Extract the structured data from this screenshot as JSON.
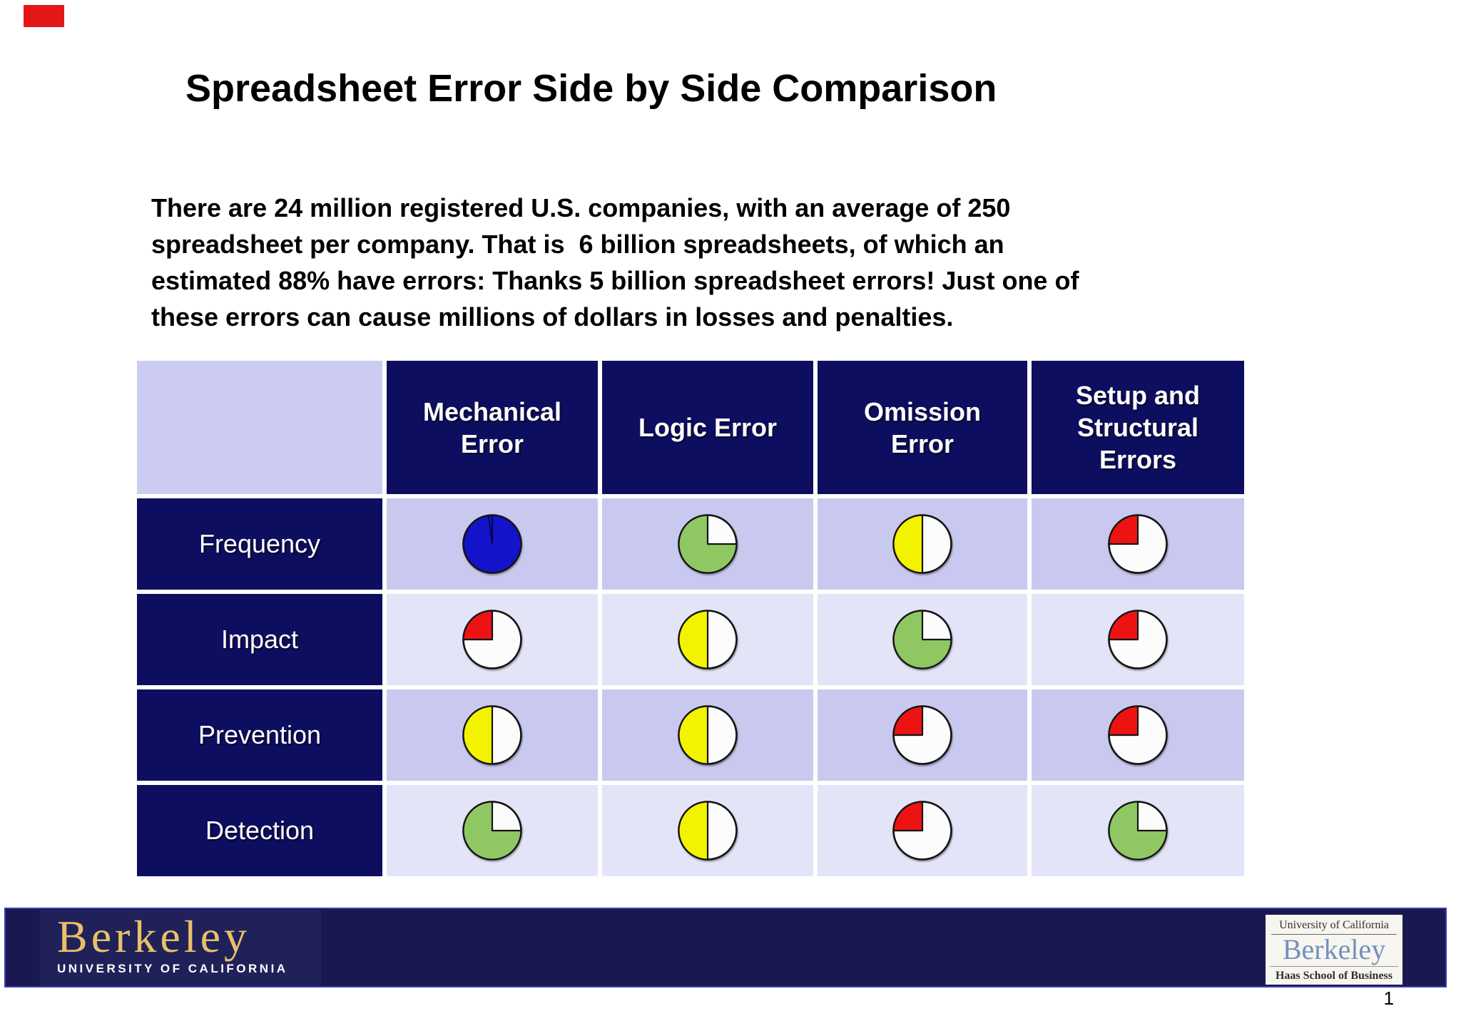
{
  "slide": {
    "title": "Spreadsheet Error Side by Side Comparison",
    "intro_lines": [
      "There are 24 million registered U.S. companies, with an average of 250",
      "spreadsheet per company. That is  6 billion spreadsheets, of which an",
      "estimated 88% have errors: Thanks 5 billion spreadsheet errors! Just one of",
      "these errors can cause millions of dollars in losses and penalties."
    ],
    "page_number": "1"
  },
  "table": {
    "columns": [
      "Mechanical Error",
      "Logic Error",
      "Omission Error",
      "Setup and Structural Errors"
    ],
    "rows": [
      {
        "label": "Frequency",
        "cells": [
          {
            "percent": 100,
            "color": "blue"
          },
          {
            "percent": 75,
            "color": "green"
          },
          {
            "percent": 50,
            "color": "yellow"
          },
          {
            "percent": 25,
            "color": "red"
          }
        ]
      },
      {
        "label": "Impact",
        "cells": [
          {
            "percent": 25,
            "color": "red"
          },
          {
            "percent": 50,
            "color": "yellow"
          },
          {
            "percent": 75,
            "color": "green"
          },
          {
            "percent": 25,
            "color": "red"
          }
        ]
      },
      {
        "label": "Prevention",
        "cells": [
          {
            "percent": 50,
            "color": "yellow"
          },
          {
            "percent": 50,
            "color": "yellow"
          },
          {
            "percent": 25,
            "color": "red"
          },
          {
            "percent": 25,
            "color": "red"
          }
        ]
      },
      {
        "label": "Detection",
        "cells": [
          {
            "percent": 75,
            "color": "green"
          },
          {
            "percent": 50,
            "color": "yellow"
          },
          {
            "percent": 25,
            "color": "red"
          },
          {
            "percent": 75,
            "color": "green"
          }
        ]
      }
    ]
  },
  "chart_data": {
    "type": "table",
    "title": "Spreadsheet Error Side by Side Comparison",
    "description": "Harvey-ball pie matrix; filled wedge sweeps counterclockwise from 12 o'clock",
    "columns": [
      "Mechanical Error",
      "Logic Error",
      "Omission Error",
      "Setup and Structural Errors"
    ],
    "rows": [
      "Frequency",
      "Impact",
      "Prevention",
      "Detection"
    ],
    "values_percent": [
      [
        100,
        75,
        50,
        25
      ],
      [
        25,
        50,
        75,
        25
      ],
      [
        50,
        50,
        25,
        25
      ],
      [
        75,
        50,
        25,
        75
      ]
    ],
    "pie_colors": [
      [
        "blue",
        "green",
        "yellow",
        "red"
      ],
      [
        "red",
        "yellow",
        "green",
        "red"
      ],
      [
        "yellow",
        "yellow",
        "red",
        "red"
      ],
      [
        "green",
        "yellow",
        "red",
        "green"
      ]
    ]
  },
  "footer": {
    "berkeley_wordmark": "Berkeley",
    "berkeley_subtitle": "UNIVERSITY OF CALIFORNIA",
    "haas_line1": "University of California",
    "haas_line2": "Berkeley",
    "haas_line3": "Haas School of Business"
  },
  "colors": {
    "pie_blue": "#1313cb",
    "pie_green": "#8fc863",
    "pie_yellow": "#f3f300",
    "pie_red": "#ee1313",
    "pie_base": "#fcfcfc",
    "pie_outline": "#141414",
    "header_navy": "#0e0e60",
    "row_odd": "#c9c9ef",
    "row_even": "#e4e4f8",
    "corner_bg": "#ccccf2",
    "footer_navy": "#191950",
    "berkeley_gold": "#e8c168",
    "haas_blue": "#7091bc"
  }
}
